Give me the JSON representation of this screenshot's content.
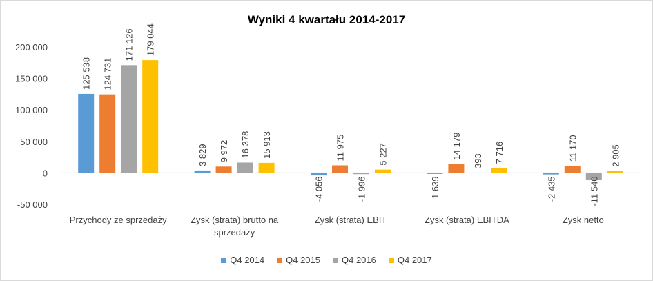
{
  "chart_data": {
    "type": "bar",
    "title": "Wyniki 4 kwartału 2014-2017",
    "xlabel": "",
    "ylabel": "",
    "ylim": [
      -50000,
      200000
    ],
    "yticks": [
      -50000,
      0,
      50000,
      100000,
      150000,
      200000
    ],
    "ytick_labels": [
      "-50 000",
      "0",
      "50 000",
      "100 000",
      "150 000",
      "200 000"
    ],
    "grid": false,
    "legend_position": "bottom",
    "categories": [
      [
        "Przychody ze sprzedaży"
      ],
      [
        "Zysk (strata) brutto na",
        "sprzedaży"
      ],
      [
        "Zysk (strata) EBIT"
      ],
      [
        "Zysk (strata) EBITDA"
      ],
      [
        "Zysk netto"
      ]
    ],
    "series": [
      {
        "name": "Q4 2014",
        "color": "#5b9bd5",
        "values": [
          125538,
          3829,
          -4056,
          -1639,
          -2435
        ],
        "labels": [
          "125 538",
          "3 829",
          "-4 056",
          "-1 639",
          "-2 435"
        ]
      },
      {
        "name": "Q4 2015",
        "color": "#ed7d31",
        "values": [
          124731,
          9972,
          11975,
          14179,
          11170
        ],
        "labels": [
          "124 731",
          "9 972",
          "11 975",
          "14 179",
          "11 170"
        ]
      },
      {
        "name": "Q4 2016",
        "color": "#a5a5a5",
        "values": [
          171126,
          16378,
          -1996,
          393,
          -11540
        ],
        "labels": [
          "171 126",
          "16 378",
          "-1 996",
          "393",
          "-11 540"
        ]
      },
      {
        "name": "Q4 2017",
        "color": "#ffc000",
        "values": [
          179044,
          15913,
          5227,
          7716,
          2905
        ],
        "labels": [
          "179 044",
          "15 913",
          "5 227",
          "7 716",
          "2 905"
        ]
      }
    ]
  }
}
